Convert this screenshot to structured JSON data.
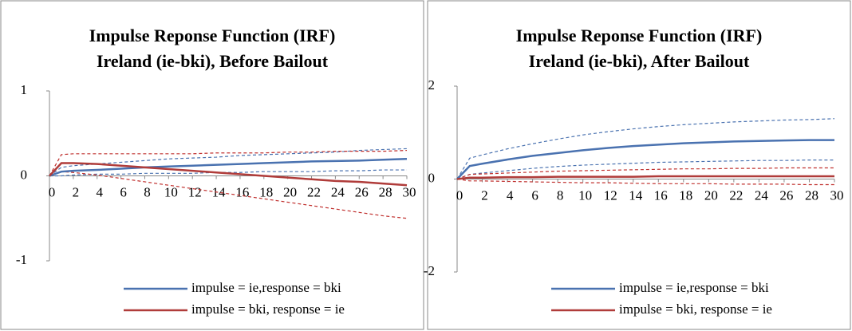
{
  "chart_data": [
    {
      "type": "line",
      "title": [
        "Impulse Reponse Function (IRF)",
        "Ireland (ie-bki), Before Bailout"
      ],
      "x": [
        0,
        1,
        2,
        4,
        6,
        8,
        10,
        12,
        14,
        16,
        18,
        20,
        22,
        24,
        26,
        28,
        30
      ],
      "xlim": [
        0,
        30
      ],
      "xticks": [
        0,
        2,
        4,
        6,
        8,
        10,
        12,
        14,
        16,
        18,
        20,
        22,
        24,
        26,
        28,
        30
      ],
      "ylim": [
        -1,
        1
      ],
      "yticks": [
        -1,
        0,
        1
      ],
      "legend": "bottom",
      "series": [
        {
          "name": "impulse = ie,response = bki",
          "color": "#4a72b0",
          "values": [
            0,
            0.05,
            0.06,
            0.07,
            0.085,
            0.1,
            0.11,
            0.12,
            0.13,
            0.14,
            0.15,
            0.16,
            0.17,
            0.175,
            0.18,
            0.19,
            0.2
          ]
        },
        {
          "name": "impulse = bki, response = ie",
          "color": "#b03c3a",
          "values": [
            0,
            0.15,
            0.15,
            0.14,
            0.12,
            0.1,
            0.08,
            0.06,
            0.04,
            0.02,
            0,
            -0.02,
            -0.04,
            -0.06,
            -0.07,
            -0.09,
            -0.11
          ]
        },
        {
          "color": "#4a72b0",
          "dashed": true,
          "values": [
            0,
            0.1,
            0.12,
            0.14,
            0.16,
            0.18,
            0.2,
            0.21,
            0.22,
            0.24,
            0.25,
            0.26,
            0.27,
            0.28,
            0.3,
            0.31,
            0.32
          ]
        },
        {
          "color": "#4a72b0",
          "dashed": true,
          "values": [
            0,
            0,
            0.01,
            0.02,
            0.02,
            0.03,
            0.03,
            0.03,
            0.04,
            0.04,
            0.05,
            0.05,
            0.05,
            0.06,
            0.06,
            0.07,
            0.07
          ]
        },
        {
          "color": "#c0302e",
          "dashed": true,
          "values": [
            0,
            0.25,
            0.26,
            0.26,
            0.26,
            0.26,
            0.26,
            0.26,
            0.27,
            0.27,
            0.27,
            0.28,
            0.28,
            0.29,
            0.29,
            0.29,
            0.3
          ]
        },
        {
          "color": "#c0302e",
          "dashed": true,
          "values": [
            0,
            0.05,
            0.04,
            0.01,
            -0.03,
            -0.07,
            -0.11,
            -0.15,
            -0.19,
            -0.23,
            -0.27,
            -0.31,
            -0.35,
            -0.39,
            -0.43,
            -0.47,
            -0.5
          ]
        }
      ]
    },
    {
      "type": "line",
      "title": [
        "Impulse Reponse Function (IRF)",
        "Ireland (ie-bki), After Bailout"
      ],
      "x": [
        0,
        1,
        2,
        4,
        6,
        8,
        10,
        12,
        14,
        16,
        18,
        20,
        22,
        24,
        26,
        28,
        30
      ],
      "xlim": [
        0,
        30
      ],
      "xticks": [
        0,
        2,
        4,
        6,
        8,
        10,
        12,
        14,
        16,
        18,
        20,
        22,
        24,
        26,
        28,
        30
      ],
      "ylim": [
        -2,
        2
      ],
      "yticks": [
        -2,
        0,
        2
      ],
      "legend": "bottom",
      "series": [
        {
          "name": "impulse = ie,response = bki",
          "color": "#4a72b0",
          "values": [
            0,
            0.28,
            0.33,
            0.42,
            0.5,
            0.56,
            0.62,
            0.67,
            0.71,
            0.74,
            0.77,
            0.79,
            0.81,
            0.82,
            0.83,
            0.84,
            0.84
          ]
        },
        {
          "name": "impulse = bki, response = ie",
          "color": "#b03c3a",
          "values": [
            0,
            0.03,
            0.03,
            0.04,
            0.04,
            0.05,
            0.05,
            0.05,
            0.05,
            0.06,
            0.06,
            0.06,
            0.06,
            0.06,
            0.06,
            0.06,
            0.06
          ]
        },
        {
          "color": "#4a72b0",
          "dashed": true,
          "values": [
            0,
            0.45,
            0.52,
            0.65,
            0.76,
            0.86,
            0.95,
            1.02,
            1.08,
            1.13,
            1.17,
            1.2,
            1.23,
            1.25,
            1.27,
            1.28,
            1.3
          ]
        },
        {
          "color": "#4a72b0",
          "dashed": true,
          "values": [
            0,
            0.1,
            0.13,
            0.18,
            0.23,
            0.27,
            0.3,
            0.32,
            0.34,
            0.36,
            0.37,
            0.38,
            0.39,
            0.4,
            0.4,
            0.41,
            0.41
          ]
        },
        {
          "color": "#c0302e",
          "dashed": true,
          "values": [
            0,
            0.1,
            0.11,
            0.13,
            0.15,
            0.17,
            0.18,
            0.19,
            0.2,
            0.21,
            0.22,
            0.22,
            0.23,
            0.23,
            0.24,
            0.24,
            0.24
          ]
        },
        {
          "color": "#c0302e",
          "dashed": true,
          "values": [
            0,
            -0.04,
            -0.04,
            -0.05,
            -0.06,
            -0.07,
            -0.08,
            -0.08,
            -0.09,
            -0.1,
            -0.1,
            -0.1,
            -0.11,
            -0.11,
            -0.11,
            -0.12,
            -0.12
          ]
        }
      ]
    }
  ]
}
